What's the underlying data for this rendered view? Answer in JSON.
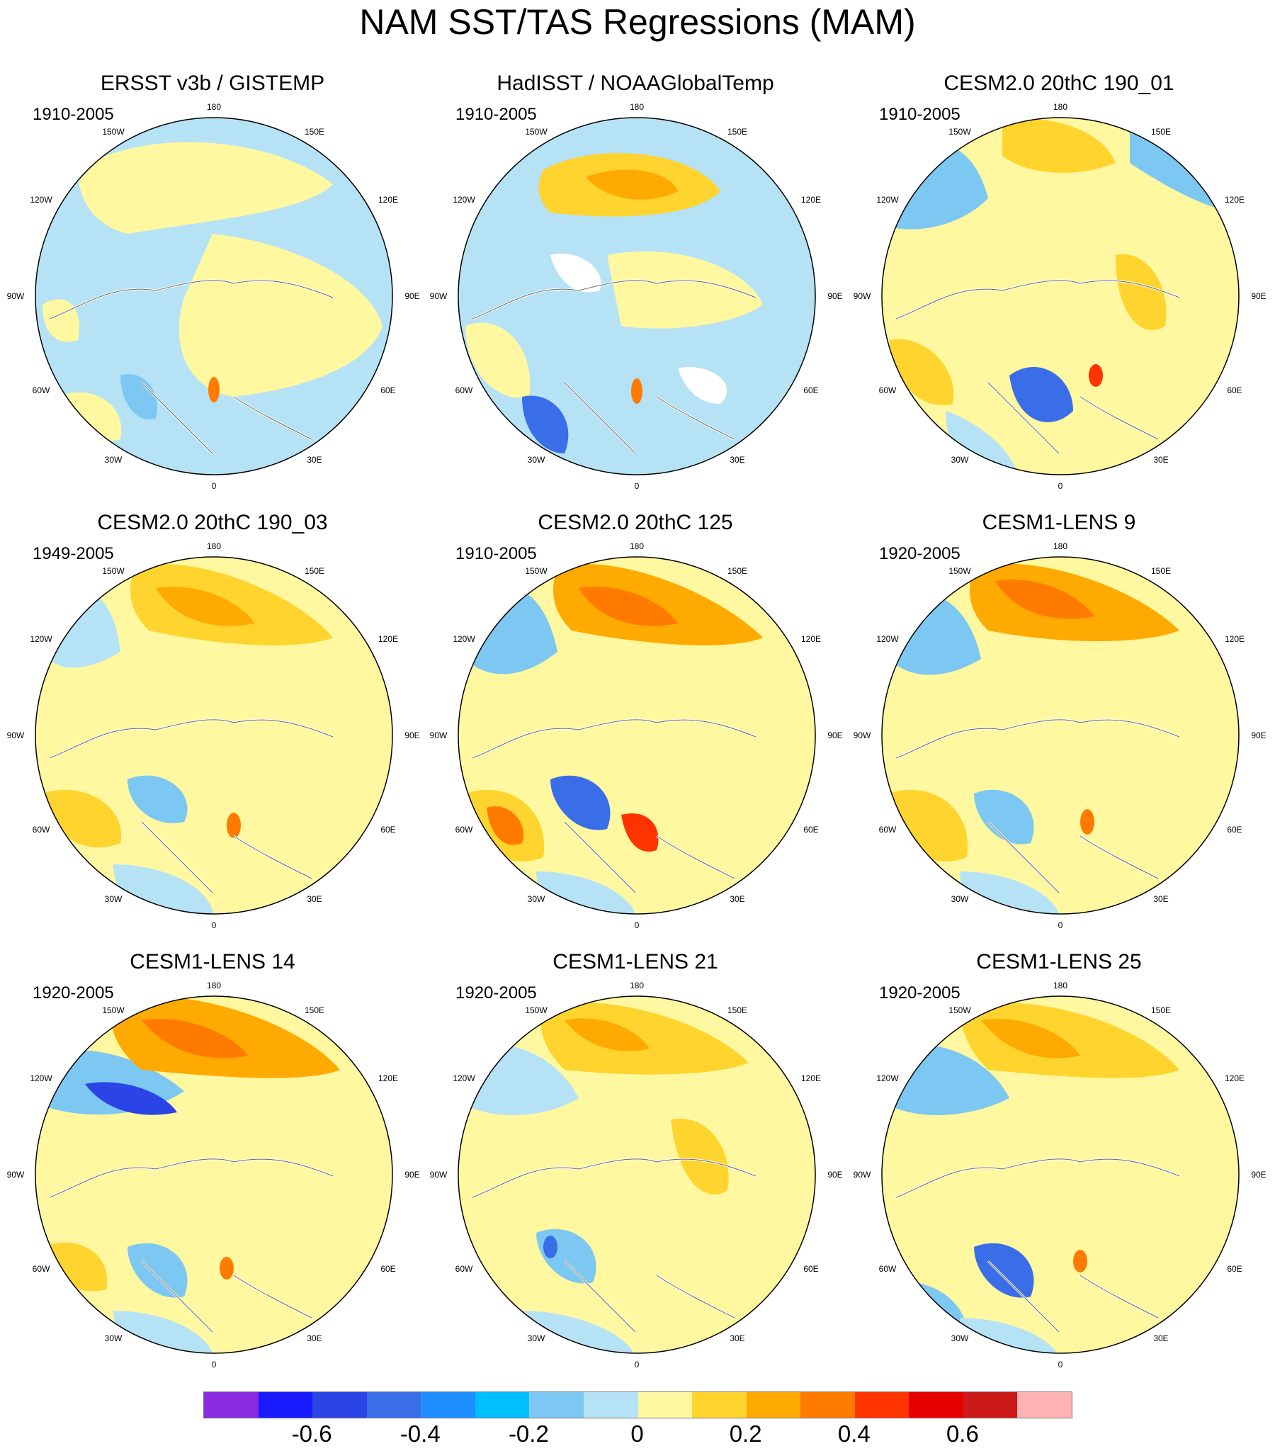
{
  "title": "NAM SST/TAS Regressions (MAM)",
  "lon_labels": {
    "top": "180",
    "bottom": "0",
    "w150": "150W",
    "e150": "150E",
    "w120": "120W",
    "e120": "120E",
    "w90": "90W",
    "e90": "90E",
    "w60": "60W",
    "e60": "60E",
    "w30": "30W",
    "e30": "30E"
  },
  "panels": [
    {
      "title": "ERSST v3b / GISTEMP",
      "period": "1910-2005"
    },
    {
      "title": "HadISST / NOAAGlobalTemp",
      "period": "1910-2005"
    },
    {
      "title": "CESM2.0 20thC 190_01",
      "period": "1910-2005"
    },
    {
      "title": "CESM2.0 20thC 190_03",
      "period": "1949-2005"
    },
    {
      "title": "CESM2.0 20thC 125",
      "period": "1910-2005"
    },
    {
      "title": "CESM1-LENS 9",
      "period": "1920-2005"
    },
    {
      "title": "CESM1-LENS 14",
      "period": "1920-2005"
    },
    {
      "title": "CESM1-LENS 21",
      "period": "1920-2005"
    },
    {
      "title": "CESM1-LENS 25",
      "period": "1920-2005"
    }
  ],
  "colorbar": {
    "colors": [
      "#8a2be2",
      "#1a1aff",
      "#2a44e6",
      "#3a6ee8",
      "#1f8fff",
      "#00bfff",
      "#7cc8f2",
      "#b5e2f5",
      "#fff8a0",
      "#ffd42e",
      "#ffaa00",
      "#ff7b00",
      "#ff3300",
      "#e60000",
      "#cc1a1a",
      "#ffb3b3"
    ],
    "labels": [
      "-0.6",
      "-0.4",
      "-0.2",
      "0",
      "0.2",
      "0.4",
      "0.6"
    ]
  }
}
